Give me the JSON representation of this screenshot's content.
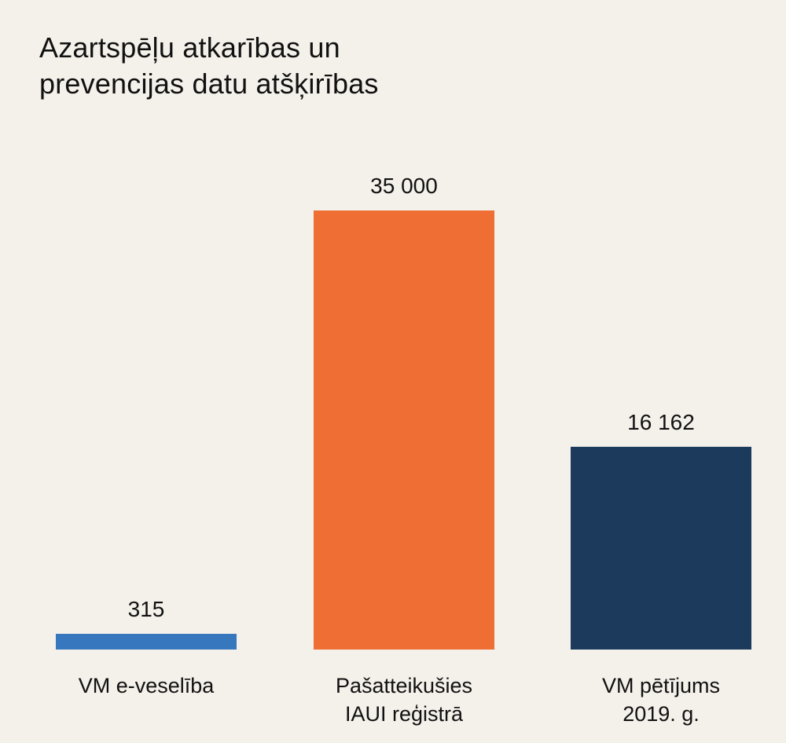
{
  "chart_data": {
    "type": "bar",
    "title_lines": [
      "Azartspēļu atkarības un",
      "prevencijas datu atšķirības"
    ],
    "categories": [
      [
        "VM e-veselība"
      ],
      [
        "Pašatteikušies",
        "IAUI reģistrā"
      ],
      [
        "VM pētījums",
        "2019. g."
      ]
    ],
    "values": [
      315,
      35000,
      16162
    ],
    "value_labels": [
      "315",
      "35 000",
      "16 162"
    ],
    "colors": [
      "#3677be",
      "#ef6e34",
      "#1b3a5c"
    ],
    "ylim": [
      0,
      35000
    ],
    "grid": false,
    "legend": "none"
  }
}
